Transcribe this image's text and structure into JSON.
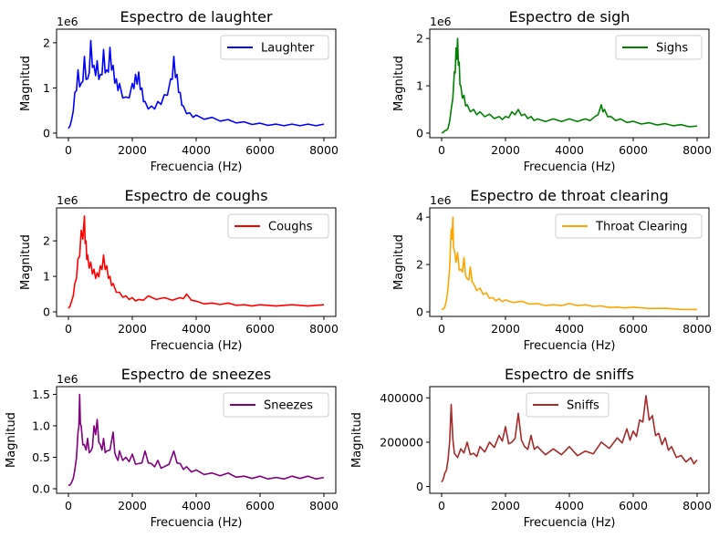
{
  "chart_data": [
    {
      "type": "line",
      "title": "Espectro de laughter",
      "xlabel": "Frecuencia (Hz)",
      "ylabel": "Magnitud",
      "y_offset_label": "1e6",
      "xlim": [
        0,
        8000
      ],
      "ylim": [
        0,
        2.2
      ],
      "xticks": [
        0,
        2000,
        4000,
        6000,
        8000
      ],
      "yticks": [
        0,
        1,
        2
      ],
      "legend": "top-right",
      "series": [
        {
          "name": "Laughter",
          "color": "#0000ff",
          "x": [
            0,
            100,
            200,
            300,
            400,
            500,
            600,
            700,
            800,
            900,
            1000,
            1100,
            1200,
            1300,
            1400,
            1500,
            1600,
            1800,
            2000,
            2100,
            2200,
            2300,
            2400,
            2600,
            2800,
            3000,
            3200,
            3300,
            3400,
            3500,
            3600,
            3800,
            4000,
            4500,
            5000,
            5500,
            6000,
            6500,
            7000,
            7500,
            8000
          ],
          "values": [
            0.1,
            0.3,
            0.9,
            1.4,
            1.1,
            1.7,
            1.2,
            2.05,
            1.5,
            1.6,
            1.3,
            1.85,
            1.4,
            1.9,
            1.5,
            1.2,
            1.1,
            0.8,
            1.1,
            1.3,
            1.35,
            1.0,
            0.7,
            0.6,
            0.7,
            0.85,
            1.2,
            1.7,
            1.3,
            0.9,
            0.6,
            0.45,
            0.4,
            0.35,
            0.3,
            0.25,
            0.22,
            0.2,
            0.2,
            0.2,
            0.2
          ]
        }
      ]
    },
    {
      "type": "line",
      "title": "Espectro de sigh",
      "xlabel": "Frecuencia (Hz)",
      "ylabel": "Magnitud",
      "y_offset_label": "1e6",
      "xlim": [
        0,
        8000
      ],
      "ylim": [
        0,
        2.1
      ],
      "xticks": [
        0,
        2000,
        4000,
        6000,
        8000
      ],
      "yticks": [
        0,
        1,
        2
      ],
      "legend": "top-right",
      "series": [
        {
          "name": "Sighs",
          "color": "#008000",
          "x": [
            0,
            100,
            200,
            300,
            400,
            450,
            500,
            550,
            600,
            700,
            800,
            1000,
            1200,
            1500,
            1800,
            2000,
            2200,
            2400,
            2600,
            2800,
            3000,
            3500,
            4000,
            4500,
            4800,
            5000,
            5100,
            5300,
            5600,
            6000,
            6500,
            7000,
            7500,
            8000
          ],
          "values": [
            0.0,
            0.05,
            0.1,
            0.5,
            1.3,
            1.8,
            2.0,
            1.5,
            1.0,
            0.8,
            0.6,
            0.5,
            0.45,
            0.4,
            0.35,
            0.35,
            0.45,
            0.5,
            0.4,
            0.35,
            0.3,
            0.3,
            0.3,
            0.3,
            0.35,
            0.6,
            0.5,
            0.35,
            0.3,
            0.25,
            0.22,
            0.2,
            0.18,
            0.15
          ]
        }
      ]
    },
    {
      "type": "line",
      "title": "Espectro de coughs",
      "xlabel": "Frecuencia (Hz)",
      "ylabel": "Magnitud",
      "y_offset_label": "1e6",
      "xlim": [
        0,
        8000
      ],
      "ylim": [
        0,
        2.8
      ],
      "xticks": [
        0,
        2000,
        4000,
        6000,
        8000
      ],
      "yticks": [
        0,
        1,
        2
      ],
      "legend": "top-right",
      "series": [
        {
          "name": "Coughs",
          "color": "#ff0000",
          "x": [
            0,
            100,
            200,
            300,
            400,
            500,
            550,
            600,
            700,
            800,
            900,
            1000,
            1100,
            1200,
            1300,
            1400,
            1600,
            1800,
            2000,
            2200,
            2500,
            3000,
            3500,
            3700,
            4000,
            4500,
            5000,
            5500,
            6000,
            7000,
            8000
          ],
          "values": [
            0.1,
            0.3,
            0.8,
            1.5,
            2.3,
            2.7,
            2.0,
            1.6,
            1.4,
            1.2,
            1.1,
            1.3,
            1.6,
            1.3,
            1.0,
            0.8,
            0.55,
            0.45,
            0.4,
            0.35,
            0.45,
            0.4,
            0.4,
            0.5,
            0.3,
            0.25,
            0.25,
            0.2,
            0.2,
            0.2,
            0.2
          ]
        }
      ]
    },
    {
      "type": "line",
      "title": "Espectro de throat clearing",
      "xlabel": "Frecuencia (Hz)",
      "ylabel": "Magnitud",
      "y_offset_label": "1e6",
      "xlim": [
        0,
        8000
      ],
      "ylim": [
        0,
        4.2
      ],
      "xticks": [
        0,
        2000,
        4000,
        6000,
        8000
      ],
      "yticks": [
        0,
        2,
        4
      ],
      "legend": "top-right",
      "series": [
        {
          "name": "Throat Clearing",
          "color": "#ffa500",
          "x": [
            0,
            100,
            200,
            300,
            350,
            400,
            500,
            600,
            700,
            800,
            900,
            1000,
            1200,
            1400,
            1600,
            1800,
            2000,
            2500,
            3000,
            3500,
            4000,
            4500,
            5000,
            5500,
            6000,
            7000,
            8000
          ],
          "values": [
            0.1,
            0.2,
            1.0,
            3.5,
            4.0,
            2.6,
            2.5,
            1.8,
            2.3,
            1.4,
            1.9,
            1.2,
            1.0,
            0.8,
            0.6,
            0.55,
            0.5,
            0.45,
            0.35,
            0.3,
            0.35,
            0.3,
            0.25,
            0.2,
            0.2,
            0.15,
            0.1
          ]
        }
      ]
    },
    {
      "type": "line",
      "title": "Espectro de sneezes",
      "xlabel": "Frecuencia (Hz)",
      "ylabel": "Magnitud",
      "y_offset_label": "1e6",
      "xlim": [
        0,
        8000
      ],
      "ylim": [
        0,
        1.55
      ],
      "xticks": [
        0,
        2000,
        4000,
        6000,
        8000
      ],
      "yticks": [
        0.0,
        0.5,
        1.0,
        1.5
      ],
      "ytick_labels": [
        "0.0",
        "0.5",
        "1.0",
        "1.5"
      ],
      "legend": "top-right",
      "series": [
        {
          "name": "Sneezes",
          "color": "#800080",
          "x": [
            0,
            100,
            200,
            300,
            350,
            400,
            500,
            600,
            700,
            800,
            900,
            1000,
            1100,
            1200,
            1400,
            1500,
            1600,
            1800,
            2000,
            2200,
            2400,
            2600,
            2800,
            3000,
            3300,
            3500,
            3700,
            4000,
            4500,
            5000,
            5500,
            6000,
            6500,
            7000,
            7500,
            8000
          ],
          "values": [
            0.05,
            0.1,
            0.3,
            0.9,
            1.5,
            1.0,
            0.7,
            0.8,
            0.6,
            1.0,
            1.1,
            0.7,
            0.8,
            0.6,
            0.9,
            0.5,
            0.6,
            0.5,
            0.55,
            0.4,
            0.6,
            0.4,
            0.45,
            0.35,
            0.6,
            0.4,
            0.35,
            0.3,
            0.25,
            0.25,
            0.2,
            0.2,
            0.18,
            0.2,
            0.2,
            0.18
          ]
        }
      ]
    },
    {
      "type": "line",
      "title": "Espectro de sniffs",
      "xlabel": "Frecuencia (Hz)",
      "ylabel": "Magnitud",
      "y_offset_label": "",
      "xlim": [
        0,
        8000
      ],
      "ylim": [
        -10000,
        430000
      ],
      "xticks": [
        0,
        2000,
        4000,
        6000,
        8000
      ],
      "yticks": [
        0,
        200000,
        400000
      ],
      "legend": "upper-center",
      "series": [
        {
          "name": "Sniffs",
          "color": "#a52a2a",
          "x": [
            0,
            100,
            200,
            300,
            400,
            600,
            800,
            1000,
            1200,
            1500,
            1800,
            2000,
            2200,
            2400,
            2600,
            2800,
            3000,
            3500,
            4000,
            4500,
            5000,
            5500,
            5800,
            6000,
            6200,
            6400,
            6600,
            6800,
            7000,
            7200,
            7500,
            7800,
            8000
          ],
          "values": [
            20000,
            60000,
            120000,
            370000,
            150000,
            170000,
            200000,
            150000,
            180000,
            200000,
            230000,
            270000,
            200000,
            330000,
            180000,
            230000,
            180000,
            170000,
            180000,
            160000,
            200000,
            220000,
            260000,
            250000,
            300000,
            410000,
            320000,
            240000,
            220000,
            180000,
            140000,
            130000,
            120000
          ]
        }
      ]
    }
  ]
}
